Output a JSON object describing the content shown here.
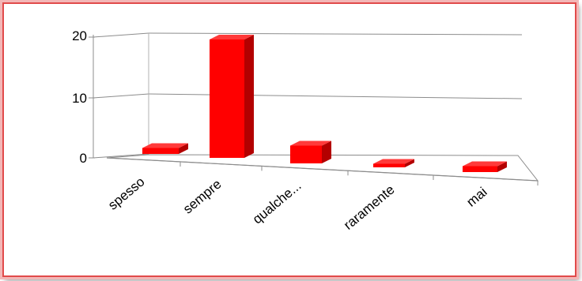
{
  "chart_data": {
    "type": "bar",
    "style": "3d-perspective",
    "categories": [
      "spesso",
      "sempre",
      "qualche...",
      "raramente",
      "mai"
    ],
    "values": [
      1,
      20,
      3,
      0,
      1
    ],
    "ylim": [
      0,
      20
    ],
    "yticks": [
      0,
      10,
      20
    ],
    "grid": true,
    "legend": "none",
    "colors": {
      "bar": "#ff0000",
      "border": "#e14b4b"
    }
  }
}
